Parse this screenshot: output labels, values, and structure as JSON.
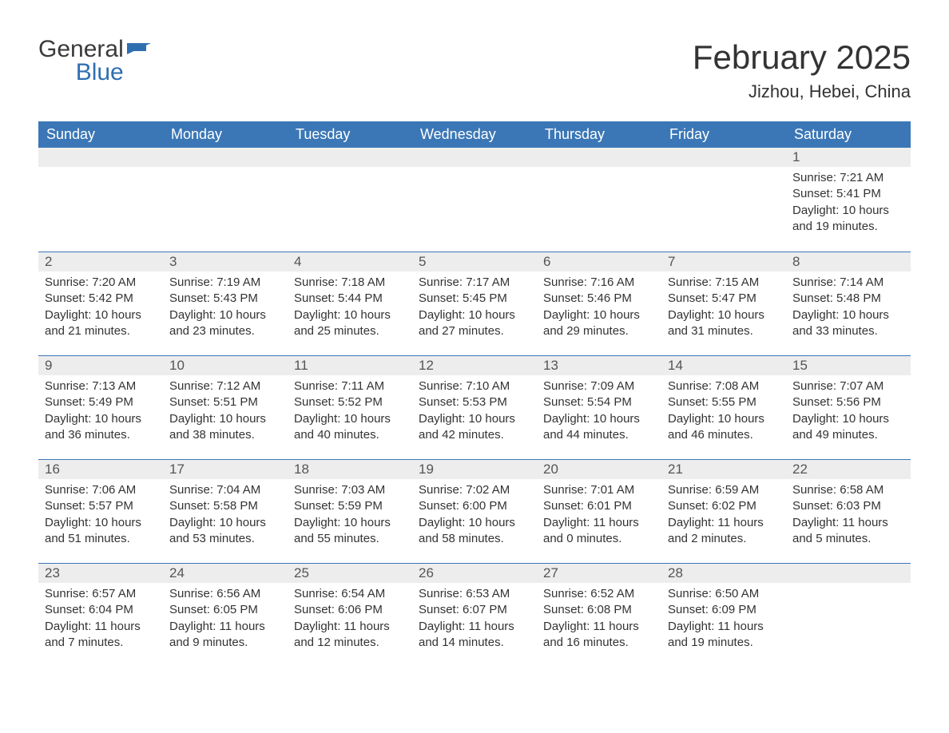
{
  "logo": {
    "general": "General",
    "blue": "Blue"
  },
  "title": "February 2025",
  "location": "Jizhou, Hebei, China",
  "colors": {
    "header_bg": "#3b77b6",
    "header_text": "#ffffff",
    "daynum_bg": "#ededed",
    "week_border": "#3b77b6",
    "brand_blue": "#2f6fb0",
    "text": "#333333",
    "background": "#ffffff"
  },
  "weekdays": [
    "Sunday",
    "Monday",
    "Tuesday",
    "Wednesday",
    "Thursday",
    "Friday",
    "Saturday"
  ],
  "weeks": [
    [
      {
        "empty": true
      },
      {
        "empty": true
      },
      {
        "empty": true
      },
      {
        "empty": true
      },
      {
        "empty": true
      },
      {
        "empty": true
      },
      {
        "num": "1",
        "sunrise": "Sunrise: 7:21 AM",
        "sunset": "Sunset: 5:41 PM",
        "daylight": "Daylight: 10 hours and 19 minutes."
      }
    ],
    [
      {
        "num": "2",
        "sunrise": "Sunrise: 7:20 AM",
        "sunset": "Sunset: 5:42 PM",
        "daylight": "Daylight: 10 hours and 21 minutes."
      },
      {
        "num": "3",
        "sunrise": "Sunrise: 7:19 AM",
        "sunset": "Sunset: 5:43 PM",
        "daylight": "Daylight: 10 hours and 23 minutes."
      },
      {
        "num": "4",
        "sunrise": "Sunrise: 7:18 AM",
        "sunset": "Sunset: 5:44 PM",
        "daylight": "Daylight: 10 hours and 25 minutes."
      },
      {
        "num": "5",
        "sunrise": "Sunrise: 7:17 AM",
        "sunset": "Sunset: 5:45 PM",
        "daylight": "Daylight: 10 hours and 27 minutes."
      },
      {
        "num": "6",
        "sunrise": "Sunrise: 7:16 AM",
        "sunset": "Sunset: 5:46 PM",
        "daylight": "Daylight: 10 hours and 29 minutes."
      },
      {
        "num": "7",
        "sunrise": "Sunrise: 7:15 AM",
        "sunset": "Sunset: 5:47 PM",
        "daylight": "Daylight: 10 hours and 31 minutes."
      },
      {
        "num": "8",
        "sunrise": "Sunrise: 7:14 AM",
        "sunset": "Sunset: 5:48 PM",
        "daylight": "Daylight: 10 hours and 33 minutes."
      }
    ],
    [
      {
        "num": "9",
        "sunrise": "Sunrise: 7:13 AM",
        "sunset": "Sunset: 5:49 PM",
        "daylight": "Daylight: 10 hours and 36 minutes."
      },
      {
        "num": "10",
        "sunrise": "Sunrise: 7:12 AM",
        "sunset": "Sunset: 5:51 PM",
        "daylight": "Daylight: 10 hours and 38 minutes."
      },
      {
        "num": "11",
        "sunrise": "Sunrise: 7:11 AM",
        "sunset": "Sunset: 5:52 PM",
        "daylight": "Daylight: 10 hours and 40 minutes."
      },
      {
        "num": "12",
        "sunrise": "Sunrise: 7:10 AM",
        "sunset": "Sunset: 5:53 PM",
        "daylight": "Daylight: 10 hours and 42 minutes."
      },
      {
        "num": "13",
        "sunrise": "Sunrise: 7:09 AM",
        "sunset": "Sunset: 5:54 PM",
        "daylight": "Daylight: 10 hours and 44 minutes."
      },
      {
        "num": "14",
        "sunrise": "Sunrise: 7:08 AM",
        "sunset": "Sunset: 5:55 PM",
        "daylight": "Daylight: 10 hours and 46 minutes."
      },
      {
        "num": "15",
        "sunrise": "Sunrise: 7:07 AM",
        "sunset": "Sunset: 5:56 PM",
        "daylight": "Daylight: 10 hours and 49 minutes."
      }
    ],
    [
      {
        "num": "16",
        "sunrise": "Sunrise: 7:06 AM",
        "sunset": "Sunset: 5:57 PM",
        "daylight": "Daylight: 10 hours and 51 minutes."
      },
      {
        "num": "17",
        "sunrise": "Sunrise: 7:04 AM",
        "sunset": "Sunset: 5:58 PM",
        "daylight": "Daylight: 10 hours and 53 minutes."
      },
      {
        "num": "18",
        "sunrise": "Sunrise: 7:03 AM",
        "sunset": "Sunset: 5:59 PM",
        "daylight": "Daylight: 10 hours and 55 minutes."
      },
      {
        "num": "19",
        "sunrise": "Sunrise: 7:02 AM",
        "sunset": "Sunset: 6:00 PM",
        "daylight": "Daylight: 10 hours and 58 minutes."
      },
      {
        "num": "20",
        "sunrise": "Sunrise: 7:01 AM",
        "sunset": "Sunset: 6:01 PM",
        "daylight": "Daylight: 11 hours and 0 minutes."
      },
      {
        "num": "21",
        "sunrise": "Sunrise: 6:59 AM",
        "sunset": "Sunset: 6:02 PM",
        "daylight": "Daylight: 11 hours and 2 minutes."
      },
      {
        "num": "22",
        "sunrise": "Sunrise: 6:58 AM",
        "sunset": "Sunset: 6:03 PM",
        "daylight": "Daylight: 11 hours and 5 minutes."
      }
    ],
    [
      {
        "num": "23",
        "sunrise": "Sunrise: 6:57 AM",
        "sunset": "Sunset: 6:04 PM",
        "daylight": "Daylight: 11 hours and 7 minutes."
      },
      {
        "num": "24",
        "sunrise": "Sunrise: 6:56 AM",
        "sunset": "Sunset: 6:05 PM",
        "daylight": "Daylight: 11 hours and 9 minutes."
      },
      {
        "num": "25",
        "sunrise": "Sunrise: 6:54 AM",
        "sunset": "Sunset: 6:06 PM",
        "daylight": "Daylight: 11 hours and 12 minutes."
      },
      {
        "num": "26",
        "sunrise": "Sunrise: 6:53 AM",
        "sunset": "Sunset: 6:07 PM",
        "daylight": "Daylight: 11 hours and 14 minutes."
      },
      {
        "num": "27",
        "sunrise": "Sunrise: 6:52 AM",
        "sunset": "Sunset: 6:08 PM",
        "daylight": "Daylight: 11 hours and 16 minutes."
      },
      {
        "num": "28",
        "sunrise": "Sunrise: 6:50 AM",
        "sunset": "Sunset: 6:09 PM",
        "daylight": "Daylight: 11 hours and 19 minutes."
      },
      {
        "empty": true
      }
    ]
  ]
}
